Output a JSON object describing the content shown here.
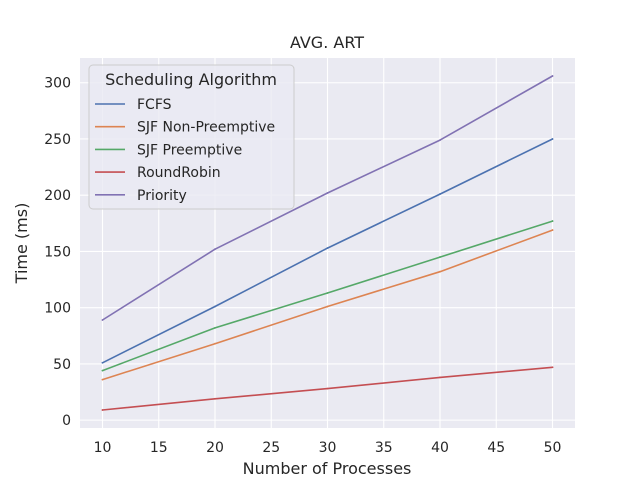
{
  "chart_data": {
    "type": "line",
    "title": "AVG. ART",
    "xlabel": "Number of Processes",
    "ylabel": "Time (ms)",
    "x": [
      10,
      20,
      30,
      40,
      50
    ],
    "xlim": [
      8,
      52
    ],
    "ylim": [
      -7,
      322
    ],
    "x_ticks": [
      10,
      15,
      20,
      25,
      30,
      35,
      40,
      45,
      50
    ],
    "y_ticks": [
      0,
      50,
      100,
      150,
      200,
      250,
      300
    ],
    "grid": true,
    "legend": {
      "title": "Scheduling Algorithm",
      "placement": "top-left"
    },
    "series": [
      {
        "name": "FCFS",
        "color": "#4c72b0",
        "values": [
          51,
          101,
          153,
          201,
          250
        ]
      },
      {
        "name": "SJF Non-Preemptive",
        "color": "#dd8452",
        "values": [
          36,
          68,
          101,
          132,
          169
        ]
      },
      {
        "name": "SJF Preemptive",
        "color": "#55a868",
        "values": [
          44,
          82,
          113,
          145,
          177
        ]
      },
      {
        "name": "RoundRobin",
        "color": "#c44e52",
        "values": [
          9,
          19,
          28,
          38,
          47
        ]
      },
      {
        "name": "Priority",
        "color": "#8172b3",
        "values": [
          89,
          152,
          202,
          249,
          306
        ]
      }
    ]
  }
}
